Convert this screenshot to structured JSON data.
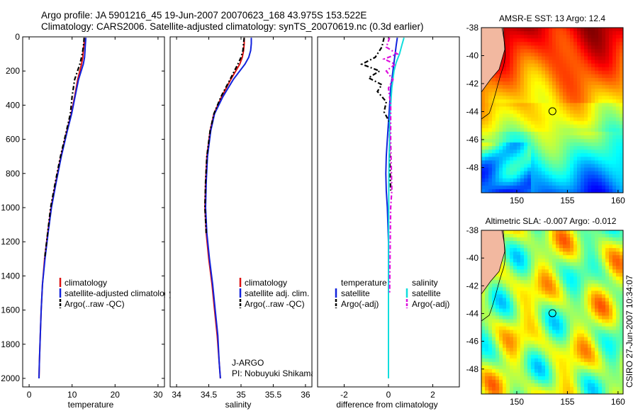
{
  "header": {
    "line1": "Argo profile: JA 5901216_45 19-Jun-2007 20070623_168 43.975S 153.522E",
    "line2": "Climatology: CARS2006. Satellite-adjusted climatology: synTS_20070619.nc (0.3d earlier)"
  },
  "colors": {
    "climatology": "#dd1111",
    "satellite": "#1122dd",
    "argo": "#000000",
    "salinity_sat": "#11dddd",
    "salinity_argo": "#dd11dd"
  },
  "chart_data": [
    {
      "type": "line",
      "panel": "temperature",
      "xlabel": "temperature",
      "xlim": [
        -1.5,
        31.5
      ],
      "ylim": [
        2050,
        0
      ],
      "xticks": [
        "0",
        "10",
        "20",
        "30"
      ],
      "yticks": [
        "0",
        "200",
        "400",
        "600",
        "800",
        "1000",
        "1200",
        "1400",
        "1600",
        "1800",
        "2000"
      ],
      "legend": [
        "climatology",
        "satellite-adjusted climatology",
        "Argo(..raw -QC)"
      ],
      "series": [
        {
          "name": "climatology",
          "x": [
            12.8,
            12.8,
            12.6,
            12.5,
            12.2,
            11.3,
            10.6,
            9.8,
            8.8,
            7.4,
            6.2,
            5.1,
            4.3,
            3.6,
            3.1,
            2.8,
            2.6,
            2.4,
            2.3
          ],
          "depth": [
            5,
            40,
            80,
            120,
            160,
            250,
            350,
            450,
            550,
            700,
            850,
            1000,
            1150,
            1300,
            1450,
            1600,
            1750,
            1900,
            2000
          ]
        },
        {
          "name": "satellite-adjusted climatology",
          "x": [
            13.2,
            13.1,
            13.0,
            12.9,
            12.6,
            11.5,
            10.7,
            9.9,
            8.9,
            7.5,
            6.3,
            5.2,
            4.4,
            3.7,
            3.1,
            2.8,
            2.6,
            2.4,
            2.3
          ],
          "depth": [
            5,
            40,
            80,
            120,
            160,
            250,
            350,
            450,
            550,
            700,
            850,
            1000,
            1150,
            1300,
            1450,
            1600,
            1750,
            1900,
            2000
          ]
        },
        {
          "name": "Argo(..raw -QC)",
          "x": [
            12.8,
            12.7,
            12.5,
            12.2,
            11.8,
            10.6,
            10.0,
            9.6,
            8.7,
            7.3,
            6.1,
            5.0,
            4.3,
            3.6
          ],
          "depth": [
            5,
            40,
            80,
            120,
            160,
            250,
            350,
            450,
            550,
            700,
            850,
            1000,
            1150,
            1300
          ]
        }
      ]
    },
    {
      "type": "line",
      "panel": "salinity",
      "xlabel": "salinity",
      "xlim": [
        33.9,
        36.1
      ],
      "ylim": [
        2050,
        0
      ],
      "xticks": [
        "34",
        "34.5",
        "35",
        "35.5",
        "36"
      ],
      "legend": [
        "climatology",
        "satellite adj. clim.",
        "Argo(..raw -QC)"
      ],
      "annotation": [
        "J-ARGO",
        "PI: Nobuyuki Shikama"
      ],
      "series": [
        {
          "name": "climatology",
          "x": [
            35.05,
            35.05,
            35.04,
            35.02,
            34.98,
            34.84,
            34.7,
            34.58,
            34.52,
            34.47,
            34.45,
            34.44,
            34.46,
            34.5,
            34.55,
            34.59,
            34.63,
            34.66,
            34.68
          ],
          "depth": [
            5,
            40,
            80,
            120,
            160,
            250,
            350,
            450,
            550,
            700,
            850,
            1000,
            1150,
            1300,
            1450,
            1600,
            1750,
            1900,
            2000
          ]
        },
        {
          "name": "satellite adj. clim.",
          "x": [
            35.16,
            35.16,
            35.15,
            35.12,
            35.06,
            34.88,
            34.72,
            34.59,
            34.53,
            34.48,
            34.46,
            34.45,
            34.47,
            34.51,
            34.56,
            34.6,
            34.64,
            34.66,
            34.68
          ],
          "depth": [
            5,
            40,
            80,
            120,
            160,
            250,
            350,
            450,
            550,
            700,
            850,
            1000,
            1150,
            1300,
            1450,
            1600,
            1750,
            1900,
            2000
          ]
        },
        {
          "name": "Argo(..raw -QC)",
          "x": [
            35.05,
            35.04,
            35.03,
            35.0,
            34.95,
            34.83,
            34.69,
            34.58,
            34.52,
            34.47,
            34.45,
            34.44,
            34.46
          ],
          "depth": [
            5,
            40,
            80,
            120,
            160,
            250,
            350,
            450,
            550,
            700,
            850,
            1000,
            1150
          ]
        }
      ]
    },
    {
      "type": "line",
      "panel": "difference",
      "xlabel": "difference from climatology",
      "xlim": [
        -3.2,
        3.2
      ],
      "ylim": [
        2050,
        0
      ],
      "xticks": [
        "-2",
        "0",
        "2"
      ],
      "legend_left": {
        "title": "temperature",
        "items": [
          "satellite",
          "Argo(-adj)"
        ]
      },
      "legend_right": {
        "title": "salinity",
        "items": [
          "satellite",
          "Argo(-adj)"
        ]
      },
      "series": [
        {
          "name": "temperature satellite",
          "x": [
            0.4,
            0.35,
            0.3,
            0.25,
            0.2,
            0.1,
            0.05,
            0.0,
            -0.05,
            -0.1,
            -0.12,
            -0.1,
            -0.05,
            0.0,
            0.0,
            0.0
          ],
          "depth": [
            5,
            50,
            100,
            150,
            200,
            300,
            400,
            500,
            600,
            700,
            800,
            900,
            1000,
            1200,
            1400,
            1750
          ]
        },
        {
          "name": "temperature Argo(-adj)",
          "x": [
            -0.2,
            -0.3,
            -0.6,
            -1.2,
            -0.4,
            -0.9,
            -0.3,
            -0.5,
            -0.1,
            -0.2,
            0.05,
            0.05,
            0.1
          ],
          "depth": [
            5,
            60,
            120,
            160,
            200,
            240,
            280,
            320,
            380,
            440,
            500,
            700,
            900
          ]
        },
        {
          "name": "salinity satellite",
          "x": [
            0.7,
            0.6,
            0.5,
            0.35,
            0.25,
            0.15,
            0.1,
            0.05,
            0.05,
            0.03,
            0.02,
            0.01,
            0.0,
            0.0
          ],
          "depth": [
            5,
            50,
            100,
            150,
            200,
            300,
            400,
            500,
            600,
            700,
            800,
            1000,
            1500,
            2000
          ]
        },
        {
          "name": "salinity Argo(-adj)",
          "x": [
            0.05,
            -0.1,
            0.4,
            -0.2,
            0.3,
            -0.1,
            0.2,
            0.0,
            0.1,
            0.1,
            0.15,
            0.1,
            0.05
          ],
          "depth": [
            5,
            60,
            100,
            130,
            160,
            200,
            250,
            300,
            400,
            600,
            900,
            1000,
            1500
          ]
        }
      ]
    },
    {
      "type": "heatmap",
      "panel": "sst_map",
      "title": "AMSR-E SST: 13 Argo: 12.4",
      "xlim": [
        146.5,
        160.5
      ],
      "ylim": [
        -49.8,
        -38
      ],
      "xticks": [
        "150",
        "155",
        "160"
      ],
      "yticks": [
        "-38",
        "-40",
        "-42",
        "-44",
        "-46",
        "-48"
      ],
      "float_position": {
        "lon": 153.522,
        "lat": -43.975
      }
    },
    {
      "type": "heatmap",
      "panel": "sla_map",
      "title": "Altimetric SLA: -0.007 Argo: -0.012",
      "xlim": [
        146.5,
        160.5
      ],
      "ylim": [
        -49.8,
        -38
      ],
      "xticks": [
        "150",
        "155",
        "160"
      ],
      "yticks": [
        "-38",
        "-40",
        "-42",
        "-44",
        "-46",
        "-48"
      ],
      "float_position": {
        "lon": 153.522,
        "lat": -43.975
      }
    }
  ],
  "footer": {
    "stamp": "CSIRO 27-Jun-2007 10:34:07"
  }
}
